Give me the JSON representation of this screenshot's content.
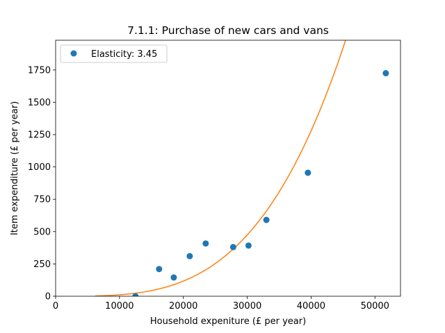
{
  "chart_data": {
    "type": "scatter",
    "title": "7.1.1: Purchase of new cars and vans",
    "xlabel": "Household expeniture (£ per year)",
    "ylabel": "Item expenditure (£ per year)",
    "xlim": [
      0,
      54000
    ],
    "ylim": [
      0,
      1980
    ],
    "xticks": [
      0,
      10000,
      20000,
      30000,
      40000,
      50000
    ],
    "yticks": [
      0,
      250,
      500,
      750,
      1000,
      1250,
      1500,
      1750
    ],
    "grid": false,
    "legend_position": "top-left",
    "series": [
      {
        "name": "Elasticity: 3.45",
        "kind": "points",
        "color": "#1f77b4",
        "points": [
          [
            12500,
            0
          ],
          [
            16200,
            210
          ],
          [
            18500,
            145
          ],
          [
            21000,
            310
          ],
          [
            23500,
            408
          ],
          [
            27800,
            380
          ],
          [
            30200,
            392
          ],
          [
            33000,
            590
          ],
          [
            39500,
            955
          ],
          [
            51700,
            1725
          ]
        ]
      },
      {
        "kind": "fit-curve",
        "color": "#ff7f0e",
        "elasticity": 3.45,
        "x_range": [
          6200,
          45400
        ],
        "reference_point": [
          45400,
          1980
        ]
      }
    ]
  }
}
